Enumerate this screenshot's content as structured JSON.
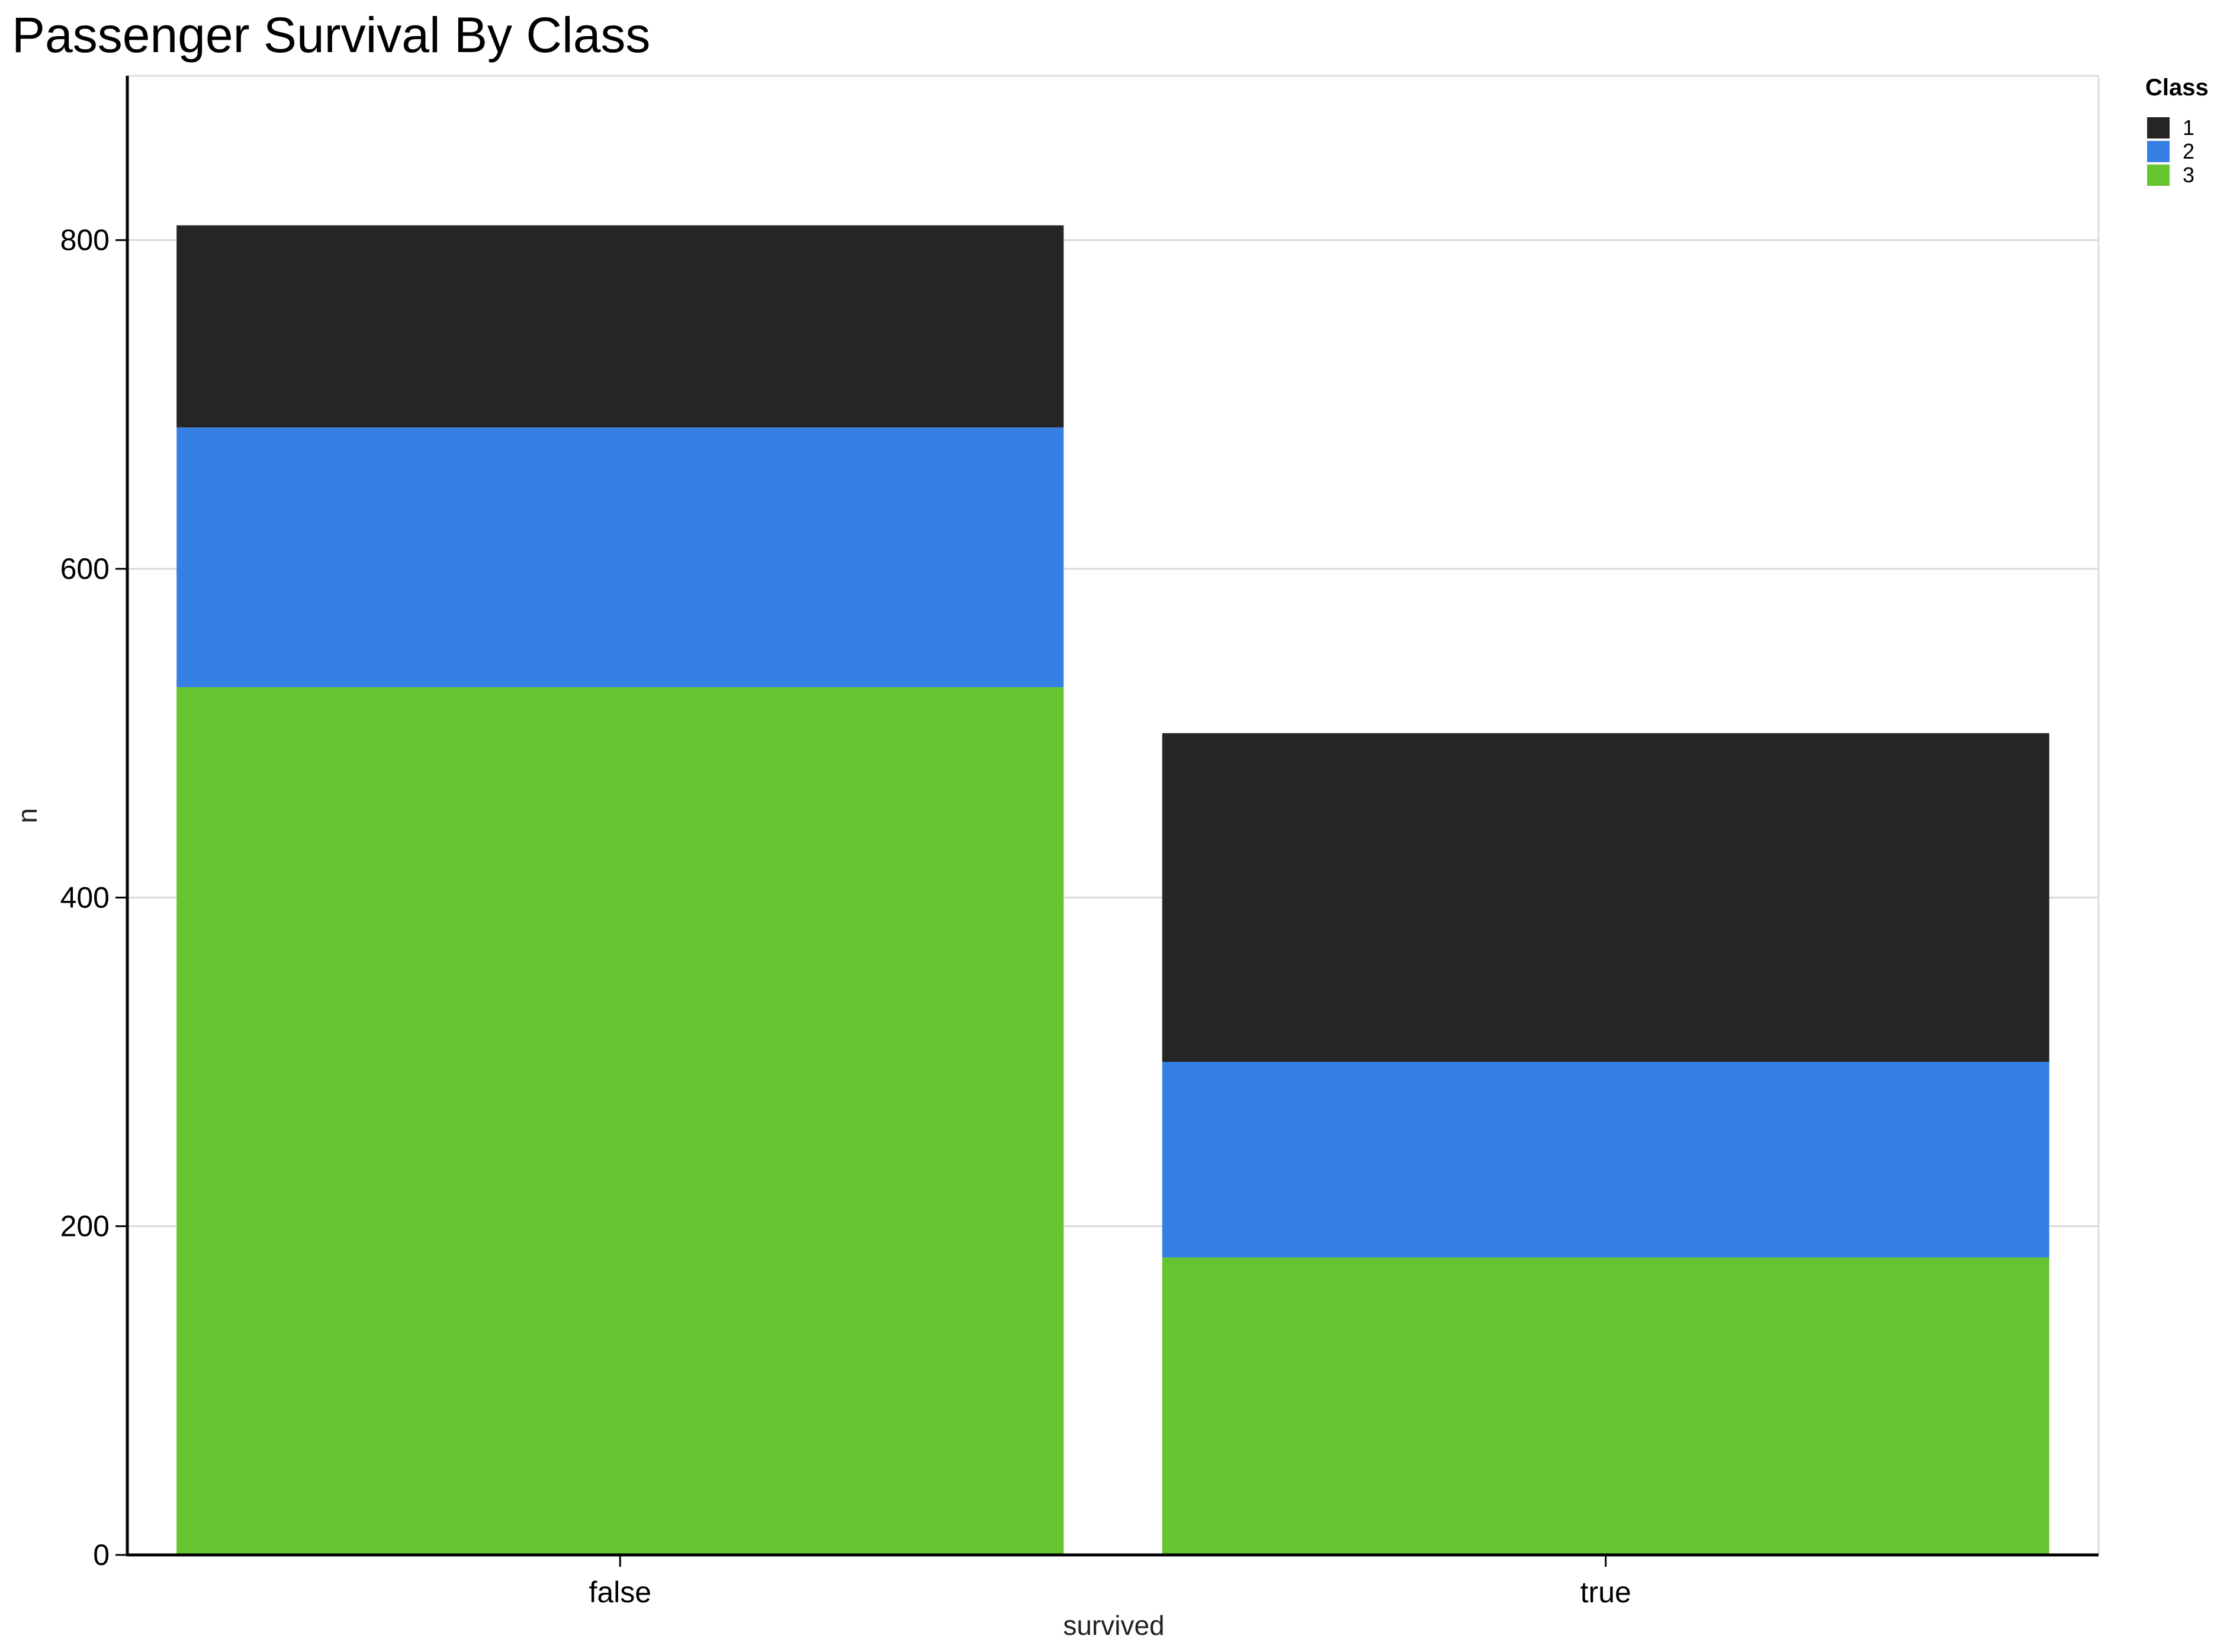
{
  "chart_data": {
    "type": "bar",
    "stacked": true,
    "title": "Passenger Survival By Class",
    "xlabel": "survived",
    "ylabel": "n",
    "categories": [
      "false",
      "true"
    ],
    "ylim": [
      0,
      900
    ],
    "yticks": [
      0,
      200,
      400,
      600,
      800
    ],
    "grid": true,
    "legend_title": "Class",
    "legend_position": "top-right",
    "series": [
      {
        "name": "3",
        "color": "#66c431",
        "values": [
          528,
          181
        ]
      },
      {
        "name": "2",
        "color": "#3780e3",
        "values": [
          158,
          119
        ]
      },
      {
        "name": "1",
        "color": "#252525",
        "values": [
          123,
          200
        ]
      }
    ],
    "legend_order": [
      "1",
      "2",
      "3"
    ]
  }
}
